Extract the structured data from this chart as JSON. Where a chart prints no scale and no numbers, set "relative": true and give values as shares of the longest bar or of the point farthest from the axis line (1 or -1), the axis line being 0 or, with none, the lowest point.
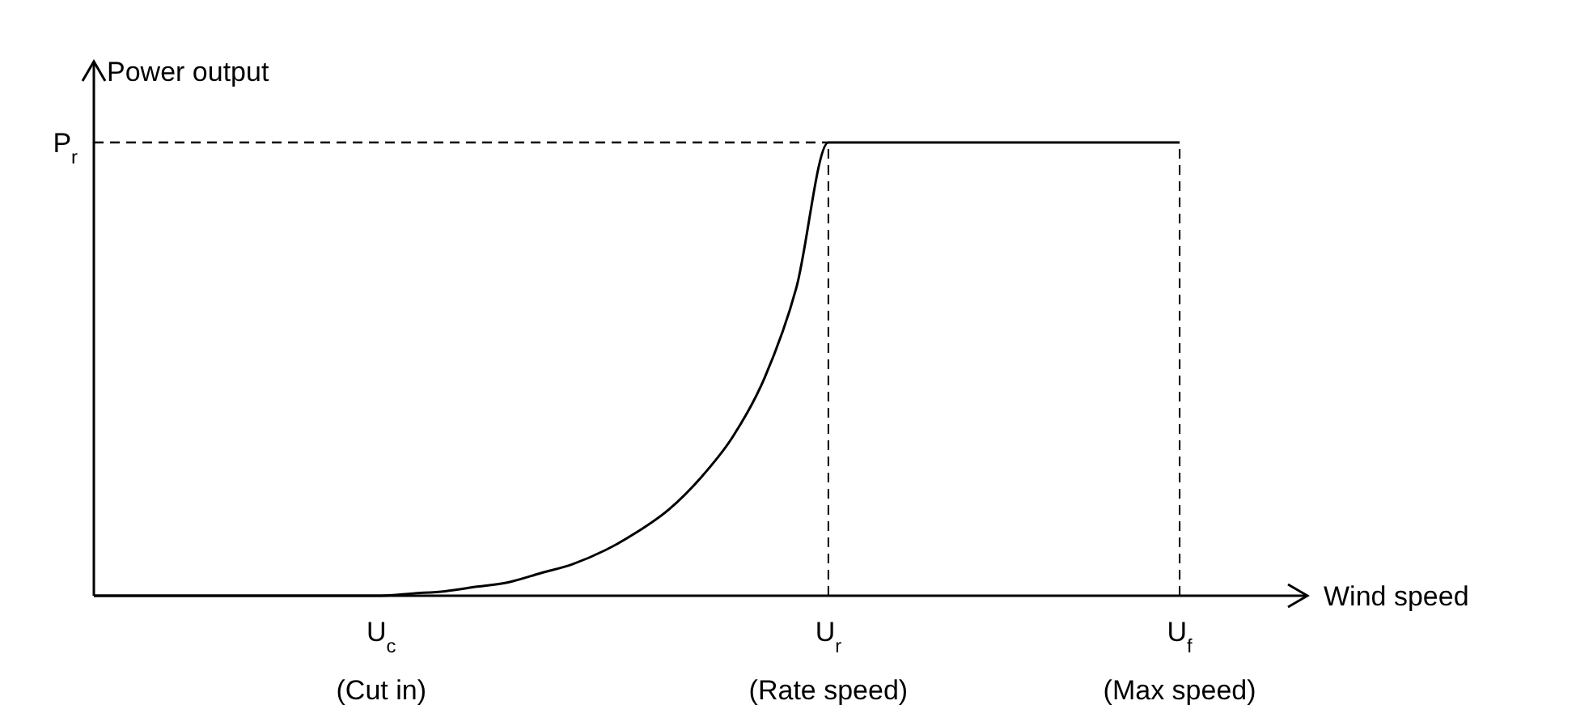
{
  "chart_data": {
    "type": "line",
    "relative": true,
    "xlabel": "Wind speed",
    "ylabel": "Power output",
    "categories": [
      null,
      null,
      null,
      null,
      null,
      null,
      null,
      null,
      null,
      "U$_{c}$\n(Cut in)",
      null,
      null,
      null,
      null,
      null,
      null,
      null,
      null,
      null,
      null,
      null,
      null,
      null,
      "U$_{r}$\n(Rate speed)",
      null,
      null,
      null,
      null,
      null,
      null,
      null,
      null,
      null,
      null,
      "U$_{f}$\n(Max speed)",
      null,
      null,
      null,
      null
    ],
    "series": [
      {
        "color": "#000000",
        "values": [
          0,
          0,
          0,
          0,
          0,
          0,
          0,
          0,
          0,
          0,
          0.005,
          0.01,
          0.02,
          0.03,
          0.05,
          0.07,
          0.1,
          0.14,
          0.19,
          0.26,
          0.35,
          0.48,
          0.68,
          1,
          1,
          1,
          1,
          1,
          1,
          1,
          1,
          1,
          1,
          1,
          1,
          null,
          null,
          null,
          null
        ]
      }
    ],
    "ref_lines": [
      {
        "axis": "y",
        "value": 1,
        "label": "P$_{r}$",
        "line_style": "dashed"
      },
      {
        "axis": "x",
        "value": "U$_{r}$\n(Rate speed)",
        "line_style": "dashed"
      },
      {
        "axis": "x",
        "value": "U$_{f}$\n(Max speed)",
        "line_style": "dashed"
      }
    ]
  }
}
